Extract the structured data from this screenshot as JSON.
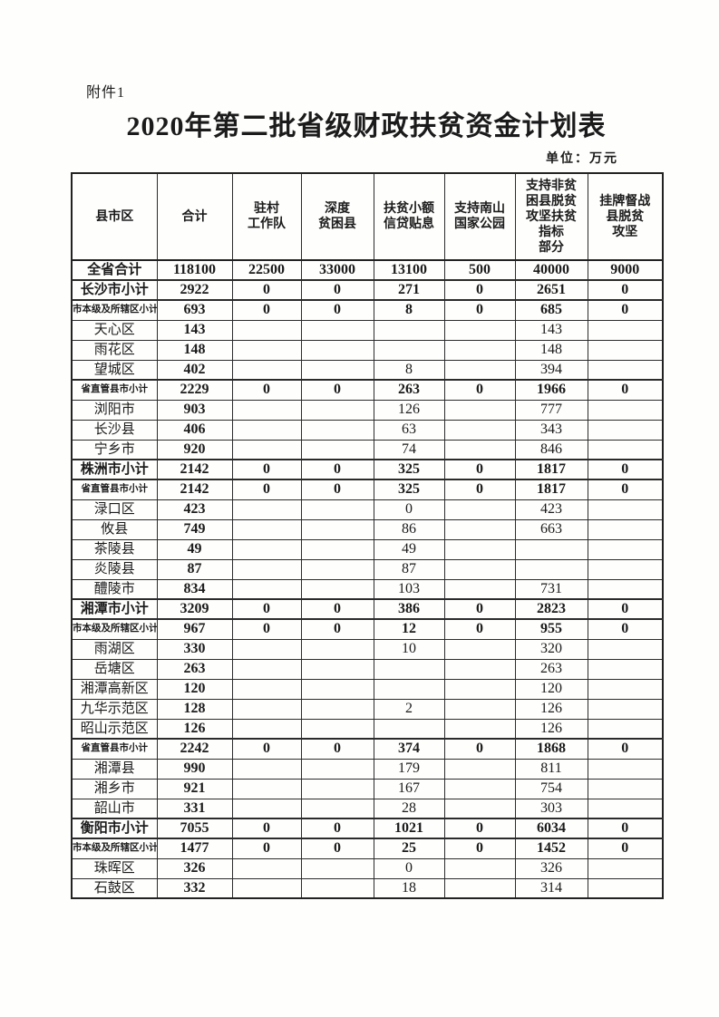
{
  "page": {
    "attachment_label": "附件1",
    "title": "2020年第二批省级财政扶贫资金计划表",
    "unit_label": "单位：万元"
  },
  "colors": {
    "text": "#1b1b1b",
    "border": "#2b2b2b",
    "background": "#fefefd"
  },
  "table": {
    "columns": [
      {
        "label": "县市区"
      },
      {
        "label": "合计"
      },
      {
        "label": "驻村\n工作队"
      },
      {
        "label": "深度\n贫困县"
      },
      {
        "label": "扶贫小额\n信贷贴息"
      },
      {
        "label": "支持南山\n国家公园"
      },
      {
        "label": "支持非贫\n困县脱贫\n攻坚扶贫\n指标\n部分"
      },
      {
        "label": "挂牌督战\n县脱贫\n攻坚"
      }
    ],
    "rows": [
      {
        "label": "全省合计",
        "values": [
          "118100",
          "22500",
          "33000",
          "13100",
          "500",
          "40000",
          "9000"
        ],
        "bold": true,
        "small_label": false
      },
      {
        "label": "长沙市小计",
        "values": [
          "2922",
          "0",
          "0",
          "271",
          "0",
          "2651",
          "0"
        ],
        "bold": true,
        "small_label": false
      },
      {
        "label": "市本级及所辖区小计",
        "values": [
          "693",
          "0",
          "0",
          "8",
          "0",
          "685",
          "0"
        ],
        "bold": true,
        "small_label": true
      },
      {
        "label": "天心区",
        "values": [
          "143",
          "",
          "",
          "",
          "",
          "143",
          ""
        ],
        "bold": false,
        "small_label": false
      },
      {
        "label": "雨花区",
        "values": [
          "148",
          "",
          "",
          "",
          "",
          "148",
          ""
        ],
        "bold": false,
        "small_label": false
      },
      {
        "label": "望城区",
        "values": [
          "402",
          "",
          "",
          "8",
          "",
          "394",
          ""
        ],
        "bold": false,
        "small_label": false
      },
      {
        "label": "省直管县市小计",
        "values": [
          "2229",
          "0",
          "0",
          "263",
          "0",
          "1966",
          "0"
        ],
        "bold": true,
        "small_label": true
      },
      {
        "label": "浏阳市",
        "values": [
          "903",
          "",
          "",
          "126",
          "",
          "777",
          ""
        ],
        "bold": false,
        "small_label": false
      },
      {
        "label": "长沙县",
        "values": [
          "406",
          "",
          "",
          "63",
          "",
          "343",
          ""
        ],
        "bold": false,
        "small_label": false
      },
      {
        "label": "宁乡市",
        "values": [
          "920",
          "",
          "",
          "74",
          "",
          "846",
          ""
        ],
        "bold": false,
        "small_label": false
      },
      {
        "label": "株洲市小计",
        "values": [
          "2142",
          "0",
          "0",
          "325",
          "0",
          "1817",
          "0"
        ],
        "bold": true,
        "small_label": false
      },
      {
        "label": "省直管县市小计",
        "values": [
          "2142",
          "0",
          "0",
          "325",
          "0",
          "1817",
          "0"
        ],
        "bold": true,
        "small_label": true
      },
      {
        "label": "渌口区",
        "values": [
          "423",
          "",
          "",
          "0",
          "",
          "423",
          ""
        ],
        "bold": false,
        "small_label": false
      },
      {
        "label": "攸县",
        "values": [
          "749",
          "",
          "",
          "86",
          "",
          "663",
          ""
        ],
        "bold": false,
        "small_label": false
      },
      {
        "label": "茶陵县",
        "values": [
          "49",
          "",
          "",
          "49",
          "",
          "",
          ""
        ],
        "bold": false,
        "small_label": false
      },
      {
        "label": "炎陵县",
        "values": [
          "87",
          "",
          "",
          "87",
          "",
          "",
          ""
        ],
        "bold": false,
        "small_label": false
      },
      {
        "label": "醴陵市",
        "values": [
          "834",
          "",
          "",
          "103",
          "",
          "731",
          ""
        ],
        "bold": false,
        "small_label": false
      },
      {
        "label": "湘潭市小计",
        "values": [
          "3209",
          "0",
          "0",
          "386",
          "0",
          "2823",
          "0"
        ],
        "bold": true,
        "small_label": false
      },
      {
        "label": "市本级及所辖区小计",
        "values": [
          "967",
          "0",
          "0",
          "12",
          "0",
          "955",
          "0"
        ],
        "bold": true,
        "small_label": true
      },
      {
        "label": "雨湖区",
        "values": [
          "330",
          "",
          "",
          "10",
          "",
          "320",
          ""
        ],
        "bold": false,
        "small_label": false
      },
      {
        "label": "岳塘区",
        "values": [
          "263",
          "",
          "",
          "",
          "",
          "263",
          ""
        ],
        "bold": false,
        "small_label": false
      },
      {
        "label": "湘潭高新区",
        "values": [
          "120",
          "",
          "",
          "",
          "",
          "120",
          ""
        ],
        "bold": false,
        "small_label": false
      },
      {
        "label": "九华示范区",
        "values": [
          "128",
          "",
          "",
          "2",
          "",
          "126",
          ""
        ],
        "bold": false,
        "small_label": false
      },
      {
        "label": "昭山示范区",
        "values": [
          "126",
          "",
          "",
          "",
          "",
          "126",
          ""
        ],
        "bold": false,
        "small_label": false
      },
      {
        "label": "省直管县市小计",
        "values": [
          "2242",
          "0",
          "0",
          "374",
          "0",
          "1868",
          "0"
        ],
        "bold": true,
        "small_label": true
      },
      {
        "label": "湘潭县",
        "values": [
          "990",
          "",
          "",
          "179",
          "",
          "811",
          ""
        ],
        "bold": false,
        "small_label": false
      },
      {
        "label": "湘乡市",
        "values": [
          "921",
          "",
          "",
          "167",
          "",
          "754",
          ""
        ],
        "bold": false,
        "small_label": false
      },
      {
        "label": "韶山市",
        "values": [
          "331",
          "",
          "",
          "28",
          "",
          "303",
          ""
        ],
        "bold": false,
        "small_label": false
      },
      {
        "label": "衡阳市小计",
        "values": [
          "7055",
          "0",
          "0",
          "1021",
          "0",
          "6034",
          "0"
        ],
        "bold": true,
        "small_label": false
      },
      {
        "label": "市本级及所辖区小计",
        "values": [
          "1477",
          "0",
          "0",
          "25",
          "0",
          "1452",
          "0"
        ],
        "bold": true,
        "small_label": true
      },
      {
        "label": "珠晖区",
        "values": [
          "326",
          "",
          "",
          "0",
          "",
          "326",
          ""
        ],
        "bold": false,
        "small_label": false
      },
      {
        "label": "石鼓区",
        "values": [
          "332",
          "",
          "",
          "18",
          "",
          "314",
          ""
        ],
        "bold": false,
        "small_label": false
      }
    ]
  }
}
